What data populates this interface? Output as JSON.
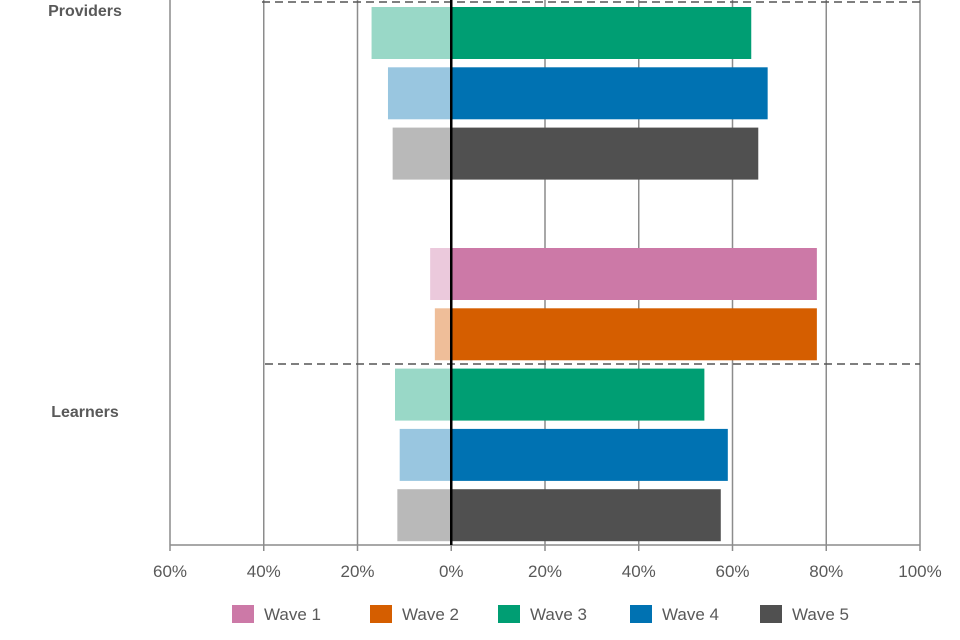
{
  "chart_data": {
    "type": "bar",
    "orientation": "horizontal",
    "stacked": "diverging",
    "xlim": [
      -60,
      100
    ],
    "x_ticks": [
      "60%",
      "40%",
      "20%",
      "0%",
      "20%",
      "40%",
      "60%",
      "80%",
      "100%"
    ],
    "groups": [
      {
        "label": "Providers",
        "rows": [
          {
            "series": "Wave 3",
            "negative": -17,
            "positive": 64
          },
          {
            "series": "Wave 4",
            "negative": -13.5,
            "positive": 67.5
          },
          {
            "series": "Wave 5",
            "negative": -12.5,
            "positive": 65.5
          }
        ]
      },
      {
        "label": "Learners",
        "rows": [
          {
            "series": "Wave 1",
            "negative": -4.5,
            "positive": 78
          },
          {
            "series": "Wave 2",
            "negative": -3.5,
            "positive": 78
          },
          {
            "series": "Wave 3",
            "negative": -12,
            "positive": 54
          },
          {
            "series": "Wave 4",
            "negative": -11,
            "positive": 59
          },
          {
            "series": "Wave 5",
            "negative": -11.5,
            "positive": 57.5
          }
        ]
      }
    ],
    "series": [
      {
        "name": "Wave 1",
        "color": "#cc79a7",
        "light_color": "#ebc9dc"
      },
      {
        "name": "Wave 2",
        "color": "#d55e00",
        "light_color": "#efbe99"
      },
      {
        "name": "Wave 3",
        "color": "#009e73",
        "light_color": "#99d8c7"
      },
      {
        "name": "Wave 4",
        "color": "#0072b2",
        "light_color": "#99c6e0"
      },
      {
        "name": "Wave 5",
        "color": "#505050",
        "light_color": "#b9b9b9"
      }
    ],
    "grid": true,
    "legend": "bottom"
  }
}
